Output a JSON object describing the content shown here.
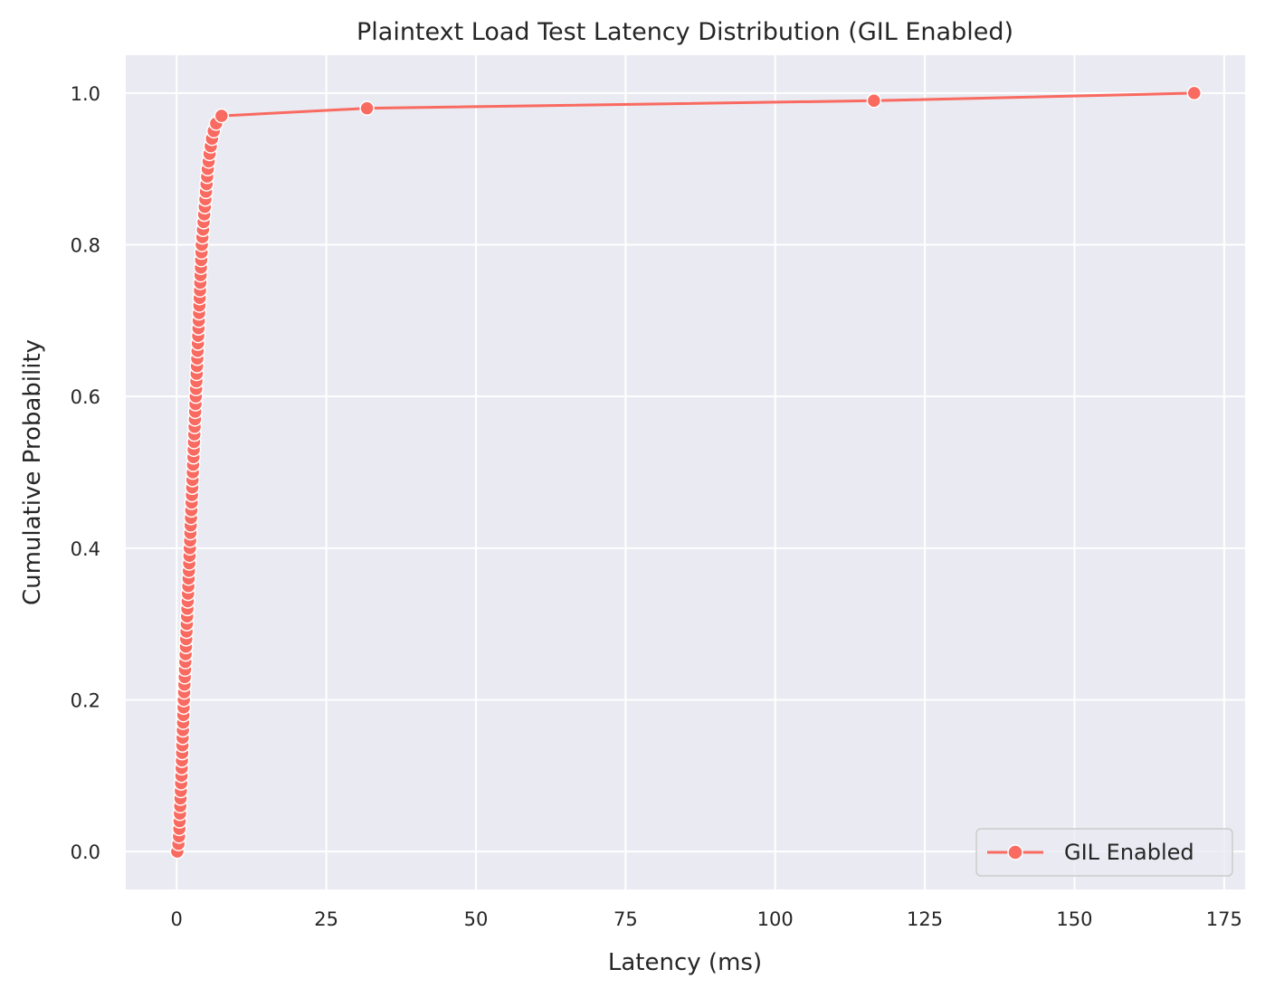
{
  "chart_data": {
    "type": "line",
    "title": "Plaintext Load Test Latency Distribution (GIL Enabled)",
    "xlabel": "Latency (ms)",
    "ylabel": "Cumulative Probability",
    "xlim": [
      -8.5,
      178.5
    ],
    "ylim": [
      -0.05,
      1.05
    ],
    "xticks": [
      0,
      25,
      50,
      75,
      100,
      125,
      150,
      175
    ],
    "yticks": [
      0.0,
      0.2,
      0.4,
      0.6,
      0.8,
      1.0
    ],
    "xtick_labels": [
      "0",
      "25",
      "50",
      "75",
      "100",
      "125",
      "150",
      "175"
    ],
    "ytick_labels": [
      "0.0",
      "0.2",
      "0.4",
      "0.6",
      "0.8",
      "1.0"
    ],
    "grid": true,
    "legend_position": "lower right",
    "series": [
      {
        "name": "GIL Enabled",
        "color": "#f96a61",
        "marker": "circle",
        "points": [
          [
            0.1,
            0.0
          ],
          [
            0.3,
            0.01
          ],
          [
            0.4,
            0.02
          ],
          [
            0.45,
            0.03
          ],
          [
            0.5,
            0.04
          ],
          [
            0.55,
            0.05
          ],
          [
            0.6,
            0.06
          ],
          [
            0.65,
            0.07
          ],
          [
            0.7,
            0.08
          ],
          [
            0.75,
            0.09
          ],
          [
            0.8,
            0.1
          ],
          [
            0.84,
            0.11
          ],
          [
            0.88,
            0.12
          ],
          [
            0.92,
            0.13
          ],
          [
            0.96,
            0.14
          ],
          [
            1.0,
            0.15
          ],
          [
            1.04,
            0.16
          ],
          [
            1.08,
            0.17
          ],
          [
            1.12,
            0.18
          ],
          [
            1.16,
            0.19
          ],
          [
            1.2,
            0.2
          ],
          [
            1.25,
            0.21
          ],
          [
            1.3,
            0.22
          ],
          [
            1.35,
            0.23
          ],
          [
            1.4,
            0.24
          ],
          [
            1.45,
            0.25
          ],
          [
            1.5,
            0.26
          ],
          [
            1.55,
            0.27
          ],
          [
            1.6,
            0.28
          ],
          [
            1.65,
            0.29
          ],
          [
            1.7,
            0.3
          ],
          [
            1.75,
            0.31
          ],
          [
            1.8,
            0.32
          ],
          [
            1.85,
            0.33
          ],
          [
            1.9,
            0.34
          ],
          [
            1.95,
            0.35
          ],
          [
            2.0,
            0.36
          ],
          [
            2.05,
            0.37
          ],
          [
            2.1,
            0.38
          ],
          [
            2.15,
            0.39
          ],
          [
            2.2,
            0.4
          ],
          [
            2.25,
            0.41
          ],
          [
            2.3,
            0.42
          ],
          [
            2.35,
            0.43
          ],
          [
            2.4,
            0.44
          ],
          [
            2.45,
            0.45
          ],
          [
            2.5,
            0.46
          ],
          [
            2.55,
            0.47
          ],
          [
            2.6,
            0.48
          ],
          [
            2.65,
            0.49
          ],
          [
            2.7,
            0.5
          ],
          [
            2.75,
            0.51
          ],
          [
            2.8,
            0.52
          ],
          [
            2.85,
            0.53
          ],
          [
            2.9,
            0.54
          ],
          [
            2.95,
            0.55
          ],
          [
            3.0,
            0.56
          ],
          [
            3.05,
            0.57
          ],
          [
            3.1,
            0.58
          ],
          [
            3.15,
            0.59
          ],
          [
            3.2,
            0.6
          ],
          [
            3.25,
            0.61
          ],
          [
            3.3,
            0.62
          ],
          [
            3.35,
            0.63
          ],
          [
            3.4,
            0.64
          ],
          [
            3.45,
            0.65
          ],
          [
            3.5,
            0.66
          ],
          [
            3.55,
            0.67
          ],
          [
            3.6,
            0.68
          ],
          [
            3.65,
            0.69
          ],
          [
            3.7,
            0.7
          ],
          [
            3.75,
            0.71
          ],
          [
            3.8,
            0.72
          ],
          [
            3.85,
            0.73
          ],
          [
            3.9,
            0.74
          ],
          [
            3.95,
            0.75
          ],
          [
            4.0,
            0.76
          ],
          [
            4.05,
            0.77
          ],
          [
            4.1,
            0.78
          ],
          [
            4.15,
            0.79
          ],
          [
            4.2,
            0.8
          ],
          [
            4.3,
            0.81
          ],
          [
            4.4,
            0.82
          ],
          [
            4.5,
            0.83
          ],
          [
            4.6,
            0.84
          ],
          [
            4.7,
            0.85
          ],
          [
            4.8,
            0.86
          ],
          [
            4.9,
            0.87
          ],
          [
            5.0,
            0.88
          ],
          [
            5.1,
            0.89
          ],
          [
            5.2,
            0.9
          ],
          [
            5.35,
            0.91
          ],
          [
            5.5,
            0.92
          ],
          [
            5.7,
            0.93
          ],
          [
            5.9,
            0.94
          ],
          [
            6.2,
            0.95
          ],
          [
            6.6,
            0.96
          ],
          [
            7.5,
            0.97
          ],
          [
            31.8,
            0.98
          ],
          [
            116.5,
            0.99
          ],
          [
            170.0,
            1.0
          ]
        ]
      }
    ]
  }
}
